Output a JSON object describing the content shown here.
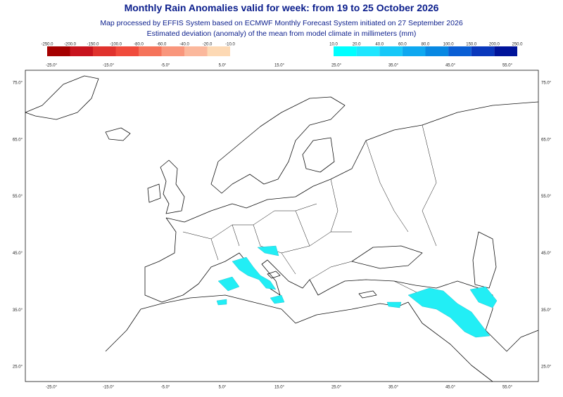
{
  "map": {
    "title": "Monthly Rain Anomalies valid for week: from 19 to 25 October 2026",
    "subtitle": "Map processed by EFFIS System based on ECMWF Monthly Forecast System initiated on 27 September 2026",
    "description": "Estimated deviation (anomaly) of the mean from model climate in millimeters (mm)",
    "negative_scale": {
      "labels": [
        "-250.0",
        "-200.0",
        "-150.0",
        "-100.0",
        "-80.0",
        "-60.0",
        "-40.0",
        "-20.0",
        "-10.0"
      ],
      "colors": [
        "#a50000",
        "#c8141e",
        "#e0322d",
        "#f04b3c",
        "#f5735a",
        "#f9967c",
        "#fbb89c",
        "#fdd9b4"
      ]
    },
    "positive_scale": {
      "labels": [
        "10.0",
        "20.0",
        "40.0",
        "60.0",
        "80.0",
        "100.0",
        "150.0",
        "200.0",
        "250.0"
      ],
      "colors": [
        "#00ffff",
        "#1ee6ff",
        "#16c8f8",
        "#0ea8f0",
        "#0888e2",
        "#0a5ed4",
        "#0a38bc",
        "#00149a"
      ]
    },
    "lon_labels": [
      "-25.0°",
      "-15.0°",
      "-5.0°",
      "5.0°",
      "15.0°",
      "25.0°",
      "35.0°",
      "45.0°",
      "55.0°"
    ],
    "lat_labels": [
      "75.0°",
      "65.0°",
      "55.0°",
      "45.0°",
      "35.0°",
      "25.0°"
    ]
  }
}
